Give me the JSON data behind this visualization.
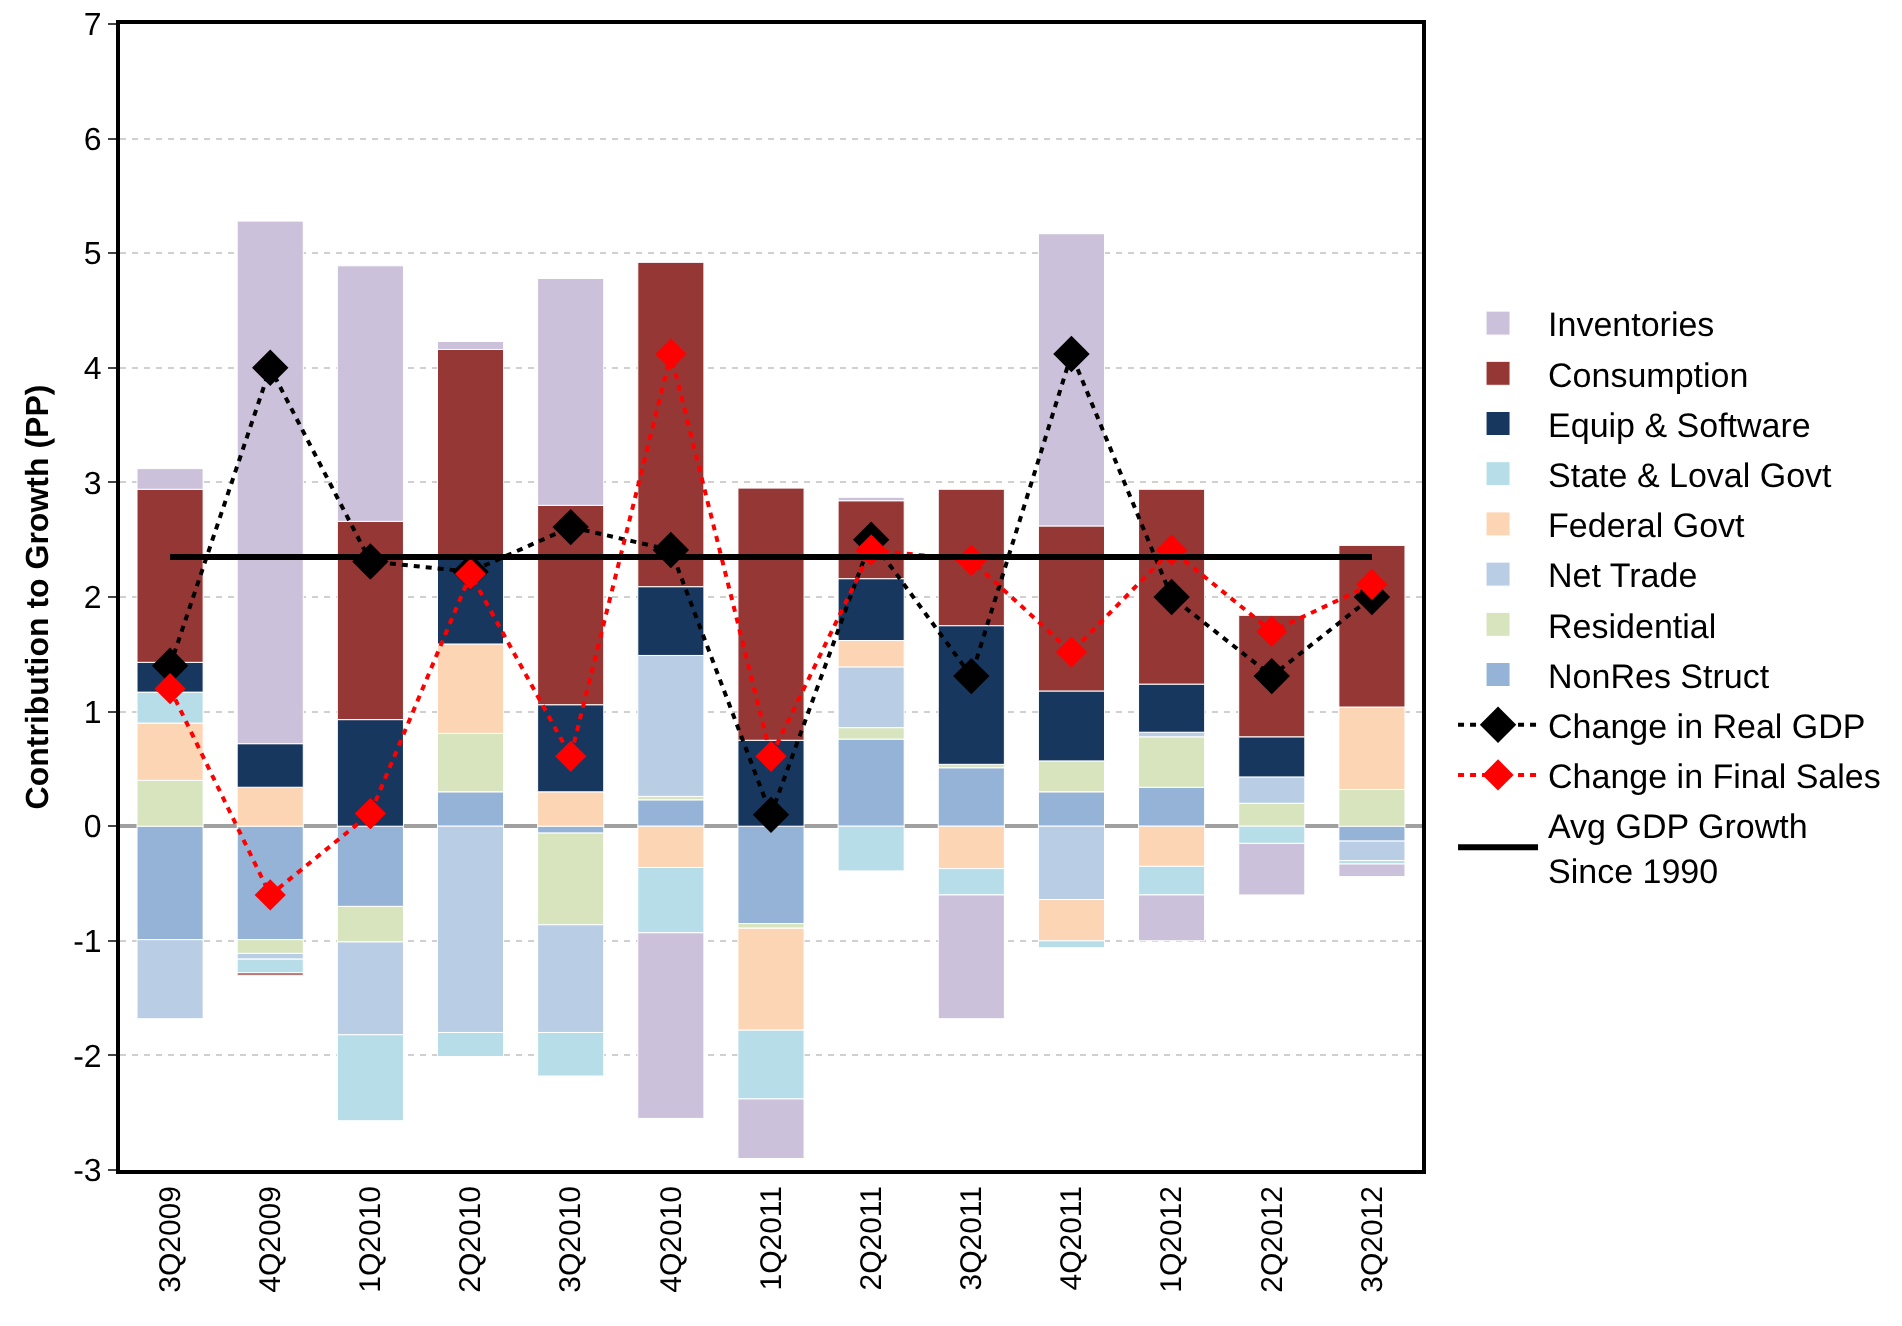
{
  "chart_data": {
    "type": "bar",
    "stacked": true,
    "ylabel": "Contribution to Growth (PP)",
    "categories": [
      "3Q2009",
      "4Q2009",
      "1Q2010",
      "2Q2010",
      "3Q2010",
      "4Q2010",
      "1Q2011",
      "2Q2011",
      "3Q2011",
      "4Q2011",
      "1Q2012",
      "2Q2012",
      "3Q2012"
    ],
    "ylim": [
      -3,
      7
    ],
    "yticks": [
      -3,
      -2,
      -1,
      0,
      1,
      2,
      3,
      4,
      5,
      6,
      7
    ],
    "grid": "y",
    "legend": "right",
    "series": [
      {
        "name": "NonRes Struct",
        "color": "#95b3d7",
        "values": [
          -0.99,
          -0.99,
          -0.7,
          0.3,
          -0.06,
          0.23,
          -0.85,
          0.76,
          0.51,
          0.3,
          0.34,
          null,
          -0.13
        ]
      },
      {
        "name": "Residential",
        "color": "#d7e4bd",
        "values": [
          0.4,
          -0.12,
          -0.31,
          0.51,
          -0.8,
          0.03,
          -0.04,
          0.1,
          0.03,
          0.27,
          0.44,
          0.2,
          0.32
        ]
      },
      {
        "name": "Net Trade",
        "color": "#b9cde5",
        "values": [
          -0.69,
          -0.05,
          -0.81,
          -1.8,
          -0.94,
          1.23,
          null,
          0.53,
          null,
          -0.64,
          0.04,
          0.23,
          -0.17
        ]
      },
      {
        "name": "Federal Govt",
        "color": "#fcd5b5",
        "values": [
          0.5,
          0.34,
          null,
          0.78,
          0.3,
          -0.36,
          -0.89,
          0.23,
          -0.37,
          -0.36,
          -0.35,
          null,
          0.72
        ]
      },
      {
        "name": "State & Loval Govt",
        "color": "#b7dee8",
        "values": [
          0.27,
          -0.12,
          -0.75,
          -0.21,
          -0.38,
          -0.57,
          -0.6,
          -0.39,
          -0.23,
          -0.06,
          -0.25,
          -0.15,
          -0.03
        ]
      },
      {
        "name": "Equip & Software",
        "color": "#17375e",
        "values": [
          0.26,
          0.38,
          0.93,
          0.75,
          0.76,
          0.6,
          0.75,
          0.54,
          1.21,
          0.61,
          0.42,
          0.35,
          null
        ]
      },
      {
        "name": "Consumption",
        "color": "#953735",
        "values": [
          1.51,
          -0.02,
          1.73,
          1.82,
          1.74,
          2.83,
          2.2,
          0.68,
          1.19,
          1.44,
          1.7,
          1.06,
          1.41
        ]
      },
      {
        "name": "Inventories",
        "color": "#ccc1da",
        "values": [
          0.18,
          4.56,
          2.23,
          0.07,
          1.98,
          -1.62,
          -0.52,
          0.03,
          -1.08,
          2.55,
          -0.4,
          -0.45,
          -0.11
        ]
      },
      {
        "name": "Change in Real GDP",
        "type": "line",
        "color": "#000000",
        "marker": "diamond",
        "line_style": "dotted",
        "values": [
          1.4,
          4.0,
          2.31,
          2.22,
          2.61,
          2.41,
          0.1,
          2.5,
          1.31,
          4.12,
          2.0,
          1.31,
          2.0
        ]
      },
      {
        "name": "Change in Final Sales",
        "type": "line",
        "color": "#ff0000",
        "marker": "diamond",
        "line_style": "dotted",
        "values": [
          1.2,
          -0.6,
          0.11,
          2.2,
          0.61,
          4.12,
          0.61,
          2.41,
          2.32,
          1.52,
          2.41,
          1.7,
          2.11
        ]
      },
      {
        "name": "Avg GDP Growth\nSince 1990",
        "type": "line",
        "color": "#000000",
        "marker": "none",
        "line_style": "solid",
        "values": [
          2.35,
          2.35,
          2.35,
          2.35,
          2.35,
          2.35,
          2.35,
          2.35,
          2.35,
          2.35,
          2.35,
          2.35,
          2.35
        ]
      }
    ]
  }
}
